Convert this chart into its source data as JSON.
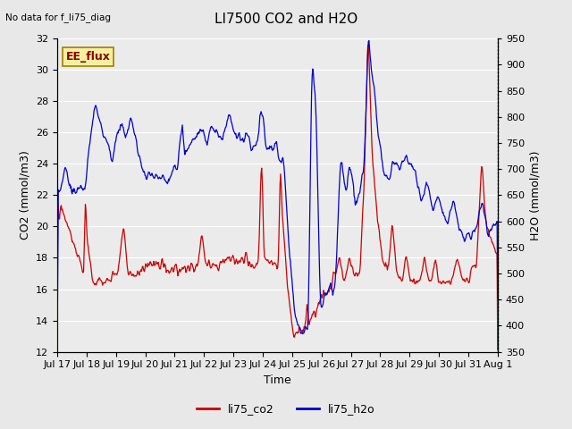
{
  "title": "LI7500 CO2 and H2O",
  "subtitle": "No data for f_li75_diag",
  "xlabel": "Time",
  "ylabel_left": "CO2 (mmol/m3)",
  "ylabel_right": "H2O (mmol/m3)",
  "ylim_left": [
    12,
    32
  ],
  "ylim_right": [
    350,
    950
  ],
  "yticks_left": [
    12,
    14,
    16,
    18,
    20,
    22,
    24,
    26,
    28,
    30,
    32
  ],
  "yticks_right": [
    350,
    400,
    450,
    500,
    550,
    600,
    650,
    700,
    750,
    800,
    850,
    900,
    950
  ],
  "xtick_labels": [
    "Jul 17",
    "Jul 18",
    "Jul 19",
    "Jul 20",
    "Jul 21",
    "Jul 22",
    "Jul 23",
    "Jul 24",
    "Jul 25",
    "Jul 26",
    "Jul 27",
    "Jul 28",
    "Jul 29",
    "Jul 30",
    "Jul 31",
    "Aug 1"
  ],
  "ee_flux_label": "EE_flux",
  "legend_entries": [
    "li75_co2",
    "li75_h2o"
  ],
  "legend_colors": [
    "#cc0000",
    "#0000cc"
  ],
  "bg_color": "#e8e8e8",
  "plot_bg_color": "#ebebeb",
  "grid_color": "#ffffff",
  "line_color_co2": "#cc0000",
  "line_color_h2o": "#0000cc"
}
